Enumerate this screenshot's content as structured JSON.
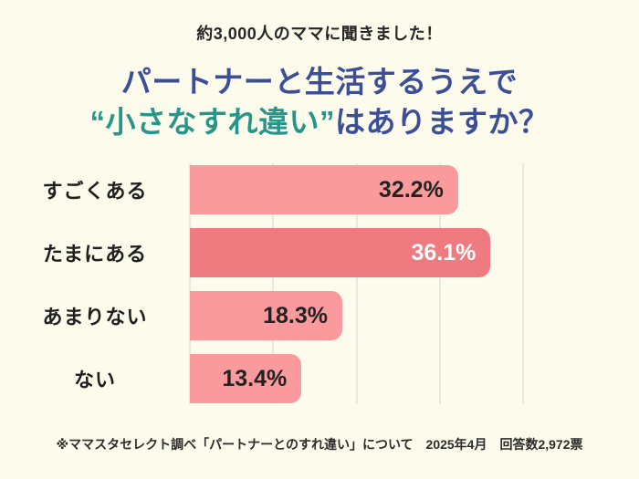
{
  "page": {
    "background": "#FDFBEC"
  },
  "header": {
    "eyebrow": "約3,000人のママに聞きました！",
    "title_line1": "パートナーと生活するうえで",
    "title_line2_highlight": "“小さなすれ違い”",
    "title_line2_rest": "はありますか？"
  },
  "colors": {
    "background": "#FDFBEC",
    "title_blue": "#3B4F97",
    "title_teal": "#26968A",
    "bar_pink": "#FA9A9C",
    "bar_pink_highlight": "#EF7A7F",
    "value_text_dark": "#222222",
    "value_text_light": "#FFFFFF",
    "gridline": "#EAE8DC",
    "label_text": "#1F1F1F"
  },
  "chart_data": {
    "type": "bar",
    "orientation": "horizontal",
    "title": "パートナーと生活するうえで“小さなすれ違い”はありますか？",
    "categories": [
      "すごくある",
      "たまにある",
      "あまりない",
      "ない"
    ],
    "values": [
      32.2,
      36.1,
      18.3,
      13.4
    ],
    "value_labels": [
      "32.2%",
      "36.1%",
      "18.3%",
      "13.4%"
    ],
    "unit": "%",
    "xlim": [
      0,
      40
    ],
    "gridline_step": 10,
    "grid": true,
    "legend": false,
    "highlighted_index": 1
  },
  "footer": {
    "note": "※ママスタセレクト調べ「パートナーとのすれ違い」について　2025年4月　回答数2,972票"
  }
}
